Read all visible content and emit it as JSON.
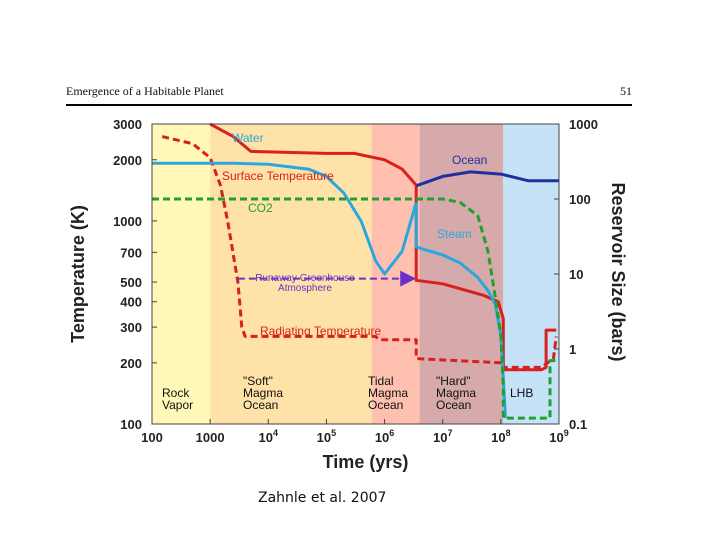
{
  "header": {
    "title": "Emergence of a Habitable Planet",
    "page_number": "51"
  },
  "citation": "Zahnle et al. 2007",
  "chart_data": {
    "type": "line",
    "title": "",
    "xlabel": "Time (yrs)",
    "ylabel_left": "Temperature (K)",
    "ylabel_right": "Reservoir Size (bars)",
    "x_scale": "log",
    "xlim": [
      100,
      1000000000
    ],
    "y_left_scale": "log",
    "y_left_lim": [
      100,
      3000
    ],
    "y_right_scale": "log",
    "y_right_lim": [
      0.1,
      1000
    ],
    "x_ticks": [
      {
        "value": 100,
        "base": "100",
        "sup": ""
      },
      {
        "value": 1000,
        "base": "1000",
        "sup": ""
      },
      {
        "value": 10000,
        "base": "10",
        "sup": "4"
      },
      {
        "value": 100000,
        "base": "10",
        "sup": "5"
      },
      {
        "value": 1000000,
        "base": "10",
        "sup": "6"
      },
      {
        "value": 10000000,
        "base": "10",
        "sup": "7"
      },
      {
        "value": 100000000,
        "base": "10",
        "sup": "8"
      },
      {
        "value": 1000000000,
        "base": "10",
        "sup": "9"
      }
    ],
    "y_left_ticks": [
      {
        "value": 3000,
        "label": "3000"
      },
      {
        "value": 2000,
        "label": "2000"
      },
      {
        "value": 1000,
        "label": "1000"
      },
      {
        "value": 700,
        "label": "700"
      },
      {
        "value": 500,
        "label": "500"
      },
      {
        "value": 400,
        "label": "400"
      },
      {
        "value": 300,
        "label": "300"
      },
      {
        "value": 200,
        "label": "200"
      },
      {
        "value": 100,
        "label": "100"
      }
    ],
    "y_right_ticks": [
      {
        "value": 1000,
        "label": "1000"
      },
      {
        "value": 100,
        "label": "100"
      },
      {
        "value": 10,
        "label": "10"
      },
      {
        "value": 1,
        "label": "1"
      },
      {
        "value": 0.1,
        "label": "0.1"
      }
    ],
    "phases": [
      {
        "label": [
          "Rock",
          "Vapor"
        ],
        "x_start": 100,
        "x_end": 1000,
        "color": "#fff8b8"
      },
      {
        "label": [
          "\"Soft\"",
          "Magma",
          "Ocean"
        ],
        "x_start": 1000,
        "x_end": 600000,
        "color": "#ffe2a8"
      },
      {
        "label": [
          "Tidal",
          "Magma",
          "Ocean"
        ],
        "x_start": 600000,
        "x_end": 4000000,
        "color": "#ffc0b0"
      },
      {
        "label": [
          "\"Hard\"",
          "Magma",
          "Ocean"
        ],
        "x_start": 4000000,
        "x_end": 110000000,
        "color": "#d6aaaa"
      },
      {
        "label": [
          "LHB"
        ],
        "x_start": 110000000,
        "x_end": 1000000000,
        "color": "#c6e2f6"
      }
    ],
    "series": [
      {
        "name": "Surface Temperature",
        "axis": "left",
        "color": "#d8201e",
        "dash": false,
        "x": [
          1000,
          2500,
          5000,
          100000,
          300000,
          1000000,
          2000000,
          3500000,
          3500000,
          10000000,
          50000000,
          90000000,
          110000000,
          110000000,
          500000000,
          600000000,
          600000000,
          900000000
        ],
        "y": [
          3000,
          2600,
          2200,
          2150,
          2150,
          2000,
          1800,
          1500,
          510,
          490,
          430,
          400,
          330,
          185,
          185,
          190,
          290,
          290
        ]
      },
      {
        "name": "Radiating Temperature",
        "axis": "left",
        "color": "#d8201e",
        "dash": true,
        "x": [
          150,
          500,
          1000,
          1500,
          2000,
          3000,
          3500,
          4000,
          700000,
          800000,
          3500000,
          3500000,
          110000000,
          110000000,
          500000000,
          800000000,
          900000000
        ],
        "y": [
          2600,
          2400,
          2050,
          1500,
          1000,
          500,
          300,
          270,
          270,
          260,
          260,
          210,
          200,
          190,
          190,
          210,
          270
        ]
      },
      {
        "name": "Water",
        "axis": "right",
        "color": "#28a8dc",
        "dash": false,
        "x": [
          100,
          2500,
          10000,
          50000,
          100000,
          200000,
          400000,
          700000,
          1000000,
          2000000,
          3500000
        ],
        "y": [
          300,
          300,
          290,
          250,
          200,
          120,
          50,
          15,
          10,
          20,
          90
        ]
      },
      {
        "name": "Steam",
        "axis": "right",
        "color": "#28a8dc",
        "dash": false,
        "x": [
          3500000,
          3500000,
          5000000,
          10000000,
          20000000,
          40000000,
          60000000,
          80000000,
          100000000,
          120000000
        ],
        "y": [
          90,
          23,
          21,
          18,
          14,
          9,
          6,
          4,
          1.5,
          0.12
        ]
      },
      {
        "name": "Ocean",
        "axis": "right",
        "color": "#2030a0",
        "dash": false,
        "x": [
          3500000,
          10000000,
          30000000,
          100000000,
          300000000,
          1000000000
        ],
        "y": [
          150,
          200,
          230,
          215,
          175,
          175
        ]
      },
      {
        "name": "CO2",
        "axis": "right",
        "color": "#20a030",
        "dash": true,
        "x": [
          100,
          1000,
          10000,
          1000000,
          10000000,
          20000000,
          40000000,
          60000000,
          80000000,
          100000000,
          110000000,
          110000000,
          500000000,
          700000000,
          700000000,
          900000000
        ],
        "y": [
          100,
          100,
          100,
          100,
          100,
          90,
          60,
          20,
          5,
          1.5,
          0.3,
          0.12,
          0.12,
          0.12,
          0.7,
          0.7
        ]
      }
    ],
    "annotations": [
      {
        "name": "runaway-greenhouse",
        "text": [
          "Runaway Greenhouse",
          "Atmosphere"
        ],
        "color": "#6a30c8",
        "arrow": {
          "x_start": 3000,
          "x_end": 3500000,
          "y": 520,
          "axis": "left",
          "dash": true
        }
      }
    ],
    "series_labels": [
      {
        "name": "Water",
        "text": "Water"
      },
      {
        "name": "Surface Temperature",
        "text": "Surface Temperature"
      },
      {
        "name": "CO2",
        "text": "CO2"
      },
      {
        "name": "Ocean",
        "text": "Ocean"
      },
      {
        "name": "Steam",
        "text": "Steam"
      },
      {
        "name": "Radiating Temperature",
        "text": "Radiating Temperature"
      }
    ],
    "grid": false,
    "legend": "none"
  }
}
